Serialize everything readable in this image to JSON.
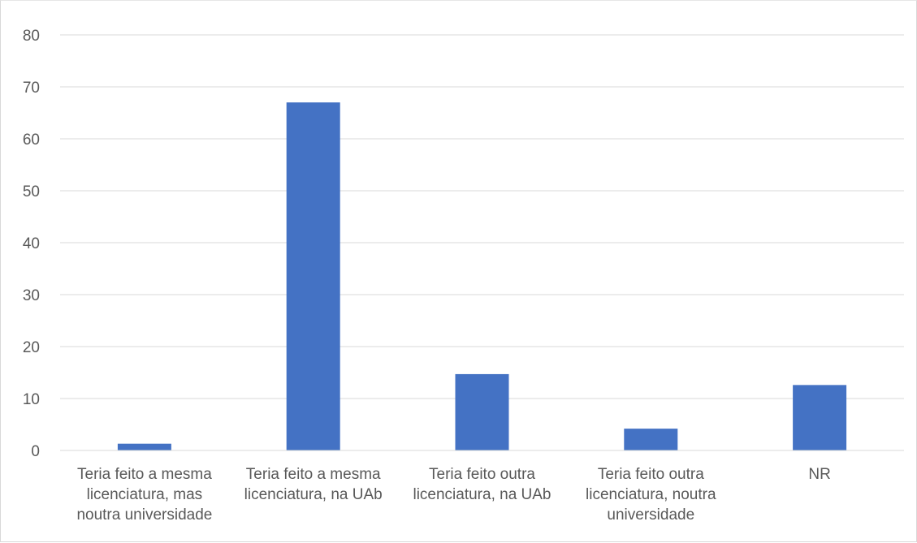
{
  "chart_data": {
    "type": "bar",
    "categories": [
      [
        "Teria feito a mesma",
        "licenciatura, mas",
        "noutra universidade"
      ],
      [
        "Teria feito a mesma",
        "licenciatura, na UAb"
      ],
      [
        "Teria feito outra",
        "licenciatura, na UAb"
      ],
      [
        "Teria feito outra",
        "licenciatura, noutra",
        "universidade"
      ],
      [
        "NR"
      ]
    ],
    "values": [
      1.3,
      67,
      14.7,
      4.2,
      12.6
    ],
    "ylim": [
      0,
      80
    ],
    "yticks": [
      0,
      10,
      20,
      30,
      40,
      50,
      60,
      70,
      80
    ],
    "grid": true,
    "bar_color": "#4472C4",
    "grid_color": "#d9d9d9",
    "legend": "none"
  }
}
